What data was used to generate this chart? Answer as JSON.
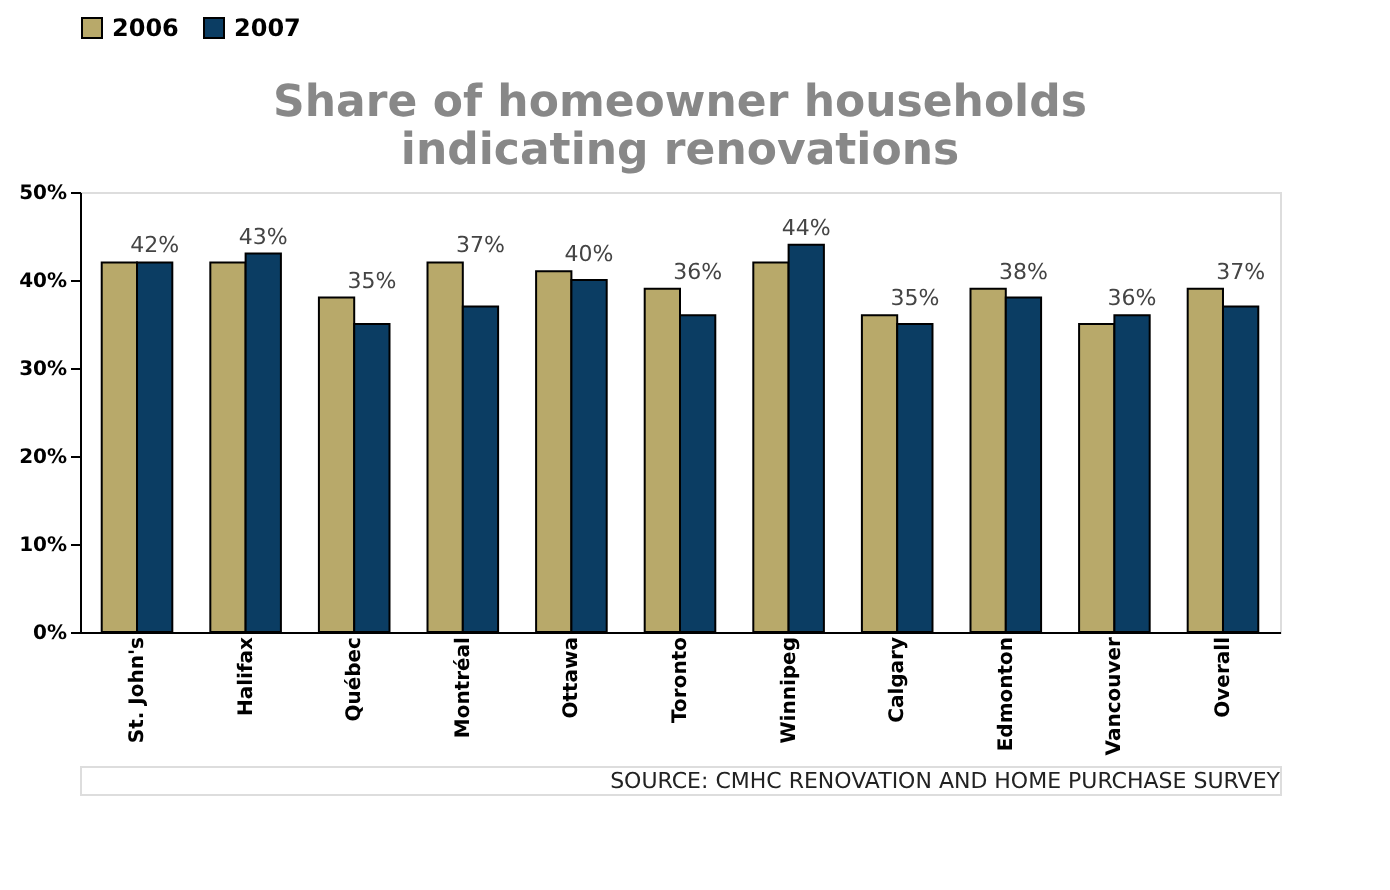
{
  "chart_data": {
    "type": "bar",
    "title": "Share of homeowner households indicating renovations",
    "categories": [
      "St. John's",
      "Halifax",
      "Québec",
      "Montréal",
      "Ottawa",
      "Toronto",
      "Winnipeg",
      "Calgary",
      "Edmonton",
      "Vancouver",
      "Overall"
    ],
    "series": [
      {
        "name": "2006",
        "color": "#b8a96a",
        "values": [
          42,
          42,
          38,
          42,
          41,
          39,
          42,
          36,
          39,
          35,
          39
        ]
      },
      {
        "name": "2007",
        "color": "#0b3d63",
        "values": [
          42,
          43,
          35,
          37,
          40,
          36,
          44,
          35,
          38,
          36,
          37
        ],
        "value_labels": [
          "42%",
          "43%",
          "35%",
          "37%",
          "40%",
          "36%",
          "44%",
          "35%",
          "38%",
          "36%",
          "37%"
        ]
      }
    ],
    "ylim": [
      0,
      50
    ],
    "yticks": [
      {
        "value": 0,
        "label": "0%"
      },
      {
        "value": 10,
        "label": "10%"
      },
      {
        "value": 20,
        "label": "20%"
      },
      {
        "value": 30,
        "label": "30%"
      },
      {
        "value": 40,
        "label": "40%"
      },
      {
        "value": 50,
        "label": "50%"
      }
    ],
    "legend": "top",
    "grid": false,
    "annotations": [
      "SOURCE: CMHC RENOVATION AND HOME PURCHASE SURVEY"
    ]
  }
}
